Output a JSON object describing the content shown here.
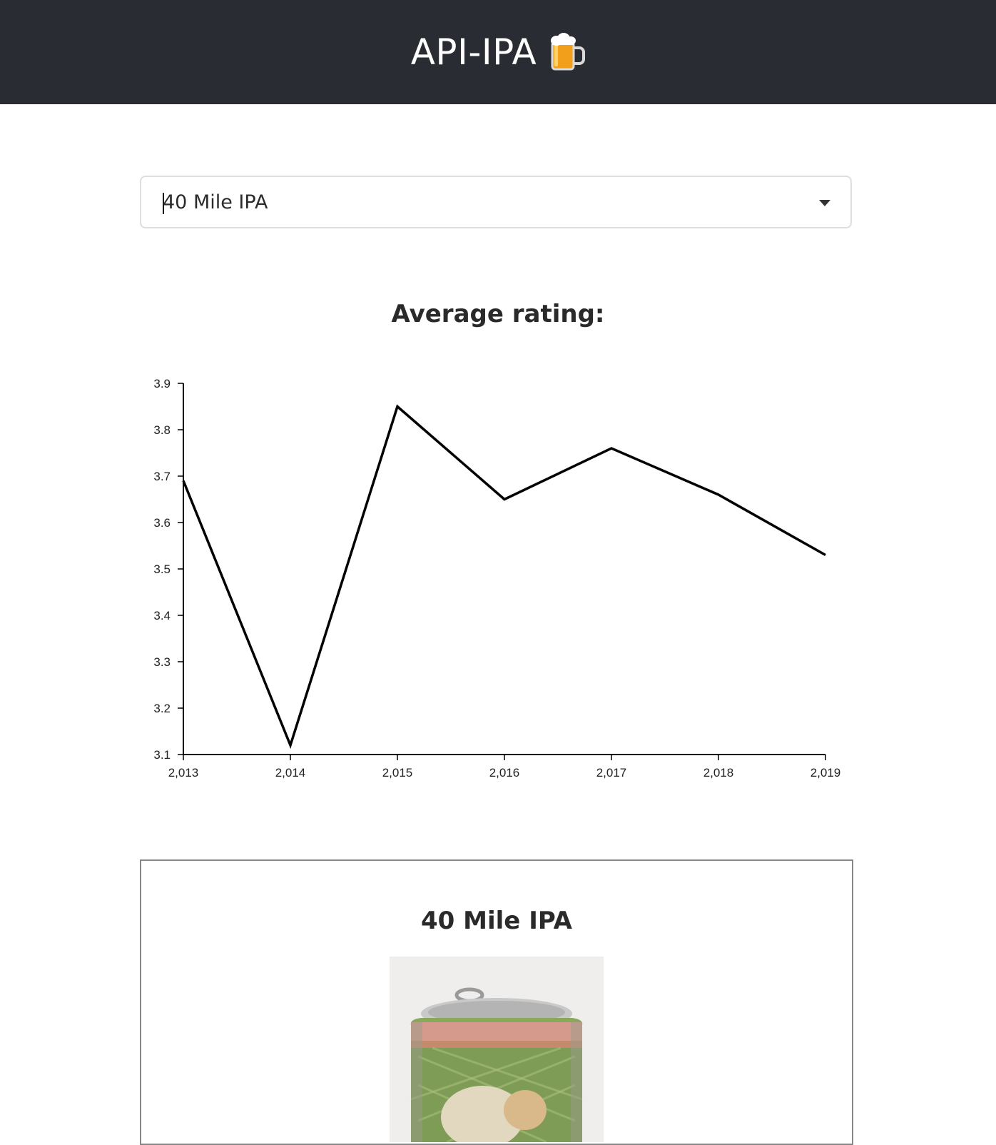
{
  "header": {
    "title": "API-IPA",
    "icon": "beer-mug-icon",
    "background": "#2a2c33"
  },
  "beer_select": {
    "value": "40 Mile IPA",
    "icon": "chevron-down-icon"
  },
  "chart_heading": "Average rating:",
  "chart_data": {
    "type": "line",
    "title": "",
    "xlabel": "",
    "ylabel": "",
    "x": [
      2013,
      2014,
      2015,
      2016,
      2017,
      2018,
      2019
    ],
    "x_tick_labels": [
      "2,013",
      "2,014",
      "2,015",
      "2,016",
      "2,017",
      "2,018",
      "2,019"
    ],
    "series": [
      {
        "values": [
          3.69,
          3.12,
          3.85,
          3.65,
          3.76,
          3.66,
          3.53
        ],
        "color": "#000000"
      }
    ],
    "y_tick_labels": [
      "3.1",
      "3.2",
      "3.3",
      "3.4",
      "3.5",
      "3.6",
      "3.7",
      "3.8",
      "3.9"
    ],
    "ylim": [
      3.1,
      3.9
    ],
    "xlim": [
      2013,
      2019
    ],
    "grid": false,
    "legend": "none"
  },
  "beer_card": {
    "title": "40 Mile IPA",
    "image_icon": "beer-can-photo"
  }
}
